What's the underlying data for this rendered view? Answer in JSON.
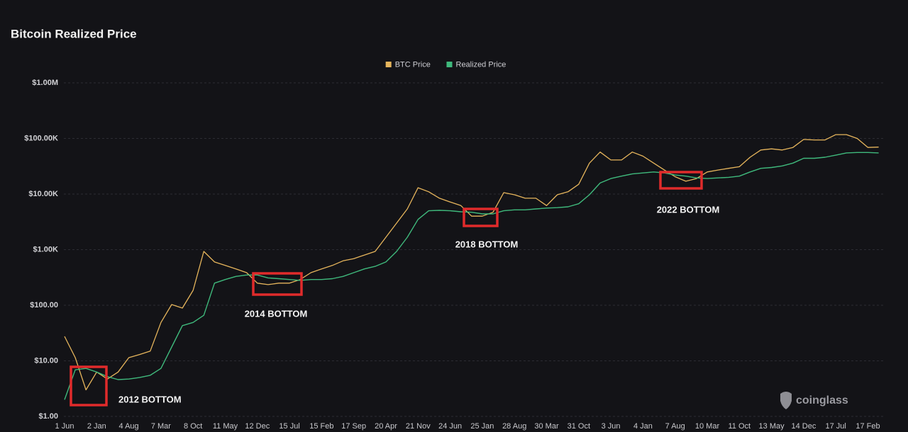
{
  "chart_data": {
    "type": "line",
    "title": "Bitcoin Realized Price",
    "categories": [
      "1 Jun",
      null,
      null,
      "2 Jan",
      null,
      null,
      "4 Aug",
      null,
      null,
      "7 Mar",
      null,
      null,
      "8 Oct",
      null,
      null,
      "11 May",
      null,
      null,
      "12 Dec",
      null,
      null,
      "15 Jul",
      null,
      null,
      "15 Feb",
      null,
      null,
      "17 Sep",
      null,
      null,
      "20 Apr",
      null,
      null,
      "21 Nov",
      null,
      null,
      "24 Jun",
      null,
      null,
      "25 Jan",
      null,
      null,
      "28 Aug",
      null,
      null,
      "30 Mar",
      null,
      null,
      "31 Oct",
      null,
      null,
      "3 Jun",
      null,
      null,
      "4 Jan",
      null,
      null,
      "7 Aug",
      null,
      null,
      "10 Mar",
      null,
      null,
      "11 Oct",
      null,
      null,
      "13 May",
      null,
      null,
      "14 Dec",
      null,
      null,
      "17 Jul",
      null,
      null,
      "17 Feb",
      null
    ],
    "series": [
      {
        "name": "BTC Price",
        "color": "#e6b55c",
        "values": [
          27.5,
          11.4,
          3.0,
          6.3,
          4.7,
          6.3,
          11.4,
          13,
          15,
          49,
          103,
          89,
          185,
          930,
          600,
          520,
          450,
          385,
          250,
          235,
          250,
          250,
          290,
          385,
          450,
          520,
          630,
          690,
          800,
          930,
          1670,
          3000,
          5400,
          13000,
          11000,
          8400,
          7200,
          6200,
          4000,
          4000,
          4700,
          10600,
          9700,
          8400,
          8400,
          6200,
          9700,
          11000,
          15000,
          36000,
          57000,
          41000,
          41000,
          57000,
          48000,
          36000,
          27000,
          20500,
          17000,
          19000,
          25000,
          27000,
          29000,
          31000,
          46000,
          62000,
          65000,
          62000,
          69000,
          96000,
          94000,
          94000,
          117000,
          117000,
          100000,
          69000,
          70000
        ]
      },
      {
        "name": "Realized Price",
        "color": "#3fb97c",
        "values": [
          2,
          6.9,
          7.3,
          6.3,
          5.2,
          4.6,
          4.7,
          5,
          5.5,
          7.3,
          17.7,
          43,
          49,
          66,
          250,
          290,
          330,
          350,
          350,
          310,
          300,
          290,
          280,
          290,
          290,
          300,
          330,
          385,
          450,
          500,
          600,
          930,
          1670,
          3500,
          5000,
          5100,
          5000,
          4800,
          4700,
          4400,
          4400,
          5000,
          5200,
          5200,
          5400,
          5600,
          5700,
          5900,
          6700,
          9700,
          15800,
          19000,
          21000,
          23000,
          24000,
          25000,
          24000,
          22000,
          21000,
          19500,
          19000,
          19500,
          20000,
          21000,
          25000,
          29000,
          30000,
          32000,
          36000,
          44000,
          44000,
          46000,
          50000,
          55000,
          56000,
          56000,
          55000
        ]
      }
    ],
    "log_scale": true,
    "ylim": [
      1,
      1000000
    ],
    "yticks": [
      {
        "value": 1,
        "label": "$1.00"
      },
      {
        "value": 10,
        "label": "$10.00"
      },
      {
        "value": 100,
        "label": "$100.00"
      },
      {
        "value": 1000,
        "label": "$1.00K"
      },
      {
        "value": 10000,
        "label": "$10.00K"
      },
      {
        "value": 100000,
        "label": "$100.00K"
      },
      {
        "value": 1000000,
        "label": "$1.00M"
      }
    ],
    "grid": true,
    "legend": "top",
    "annotations": [
      {
        "text": "2012 BOTTOM"
      },
      {
        "text": "2014 BOTTOM"
      },
      {
        "text": "2018 BOTTOM"
      },
      {
        "text": "2022 BOTTOM"
      }
    ],
    "watermark": "coinglass"
  }
}
